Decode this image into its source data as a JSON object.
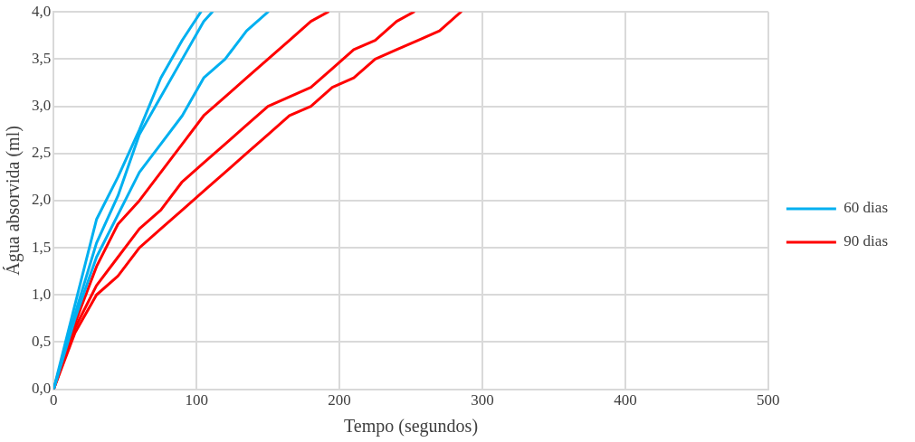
{
  "chart_data": {
    "type": "line",
    "xlabel": "Tempo (segundos)",
    "ylabel": "Água absorvida (ml)",
    "xlim": [
      0,
      500
    ],
    "xticks": [
      0,
      100,
      200,
      300,
      400,
      500
    ],
    "ylim": [
      0,
      4
    ],
    "yticks": [
      {
        "value": 0,
        "label": "0,0"
      },
      {
        "value": 0.5,
        "label": "0,5"
      },
      {
        "value": 1,
        "label": "1,0"
      },
      {
        "value": 1.5,
        "label": "1,5"
      },
      {
        "value": 2,
        "label": "2,0"
      },
      {
        "value": 2.5,
        "label": "2,5"
      },
      {
        "value": 3,
        "label": "3,0"
      },
      {
        "value": 3.5,
        "label": "3,5"
      },
      {
        "value": 4,
        "label": "4,0"
      }
    ],
    "grid": true,
    "legend": "right",
    "marker": "none",
    "line_style": "solid",
    "series": [
      {
        "name": "60 dias",
        "color": "#00b0f0",
        "x": [
          0,
          15,
          30,
          45,
          60,
          75,
          90,
          103
        ],
        "values": [
          0,
          0.9,
          1.8,
          2.25,
          2.75,
          3.3,
          3.7,
          4.0
        ]
      },
      {
        "color": "#00b0f0",
        "x": [
          0,
          15,
          30,
          45,
          60,
          75,
          90,
          105,
          111
        ],
        "values": [
          0,
          0.8,
          1.55,
          2.05,
          2.7,
          3.1,
          3.5,
          3.9,
          4.0
        ]
      },
      {
        "color": "#00b0f0",
        "x": [
          0,
          15,
          30,
          45,
          60,
          75,
          90,
          105,
          120,
          135,
          150
        ],
        "values": [
          0,
          0.75,
          1.4,
          1.85,
          2.3,
          2.6,
          2.9,
          3.3,
          3.5,
          3.8,
          4.0
        ]
      },
      {
        "name": "90 dias",
        "color": "#ff0000",
        "x": [
          0,
          15,
          30,
          45,
          60,
          75,
          90,
          105,
          120,
          135,
          150,
          165,
          180,
          192
        ],
        "values": [
          0,
          0.7,
          1.3,
          1.75,
          2.0,
          2.3,
          2.6,
          2.9,
          3.1,
          3.3,
          3.5,
          3.7,
          3.9,
          4.0
        ]
      },
      {
        "color": "#ff0000",
        "x": [
          0,
          15,
          30,
          45,
          60,
          75,
          90,
          105,
          120,
          135,
          150,
          165,
          180,
          195,
          210,
          225,
          240,
          252
        ],
        "values": [
          0,
          0.65,
          1.1,
          1.4,
          1.7,
          1.9,
          2.2,
          2.4,
          2.6,
          2.8,
          3.0,
          3.1,
          3.2,
          3.4,
          3.6,
          3.7,
          3.9,
          4.0
        ]
      },
      {
        "color": "#ff0000",
        "x": [
          0,
          15,
          30,
          45,
          60,
          75,
          90,
          105,
          120,
          135,
          150,
          165,
          180,
          195,
          210,
          225,
          240,
          255,
          270,
          285
        ],
        "values": [
          0,
          0.6,
          1.0,
          1.2,
          1.5,
          1.7,
          1.9,
          2.1,
          2.3,
          2.5,
          2.7,
          2.9,
          3.0,
          3.2,
          3.3,
          3.5,
          3.6,
          3.7,
          3.8,
          4.0
        ]
      }
    ]
  }
}
